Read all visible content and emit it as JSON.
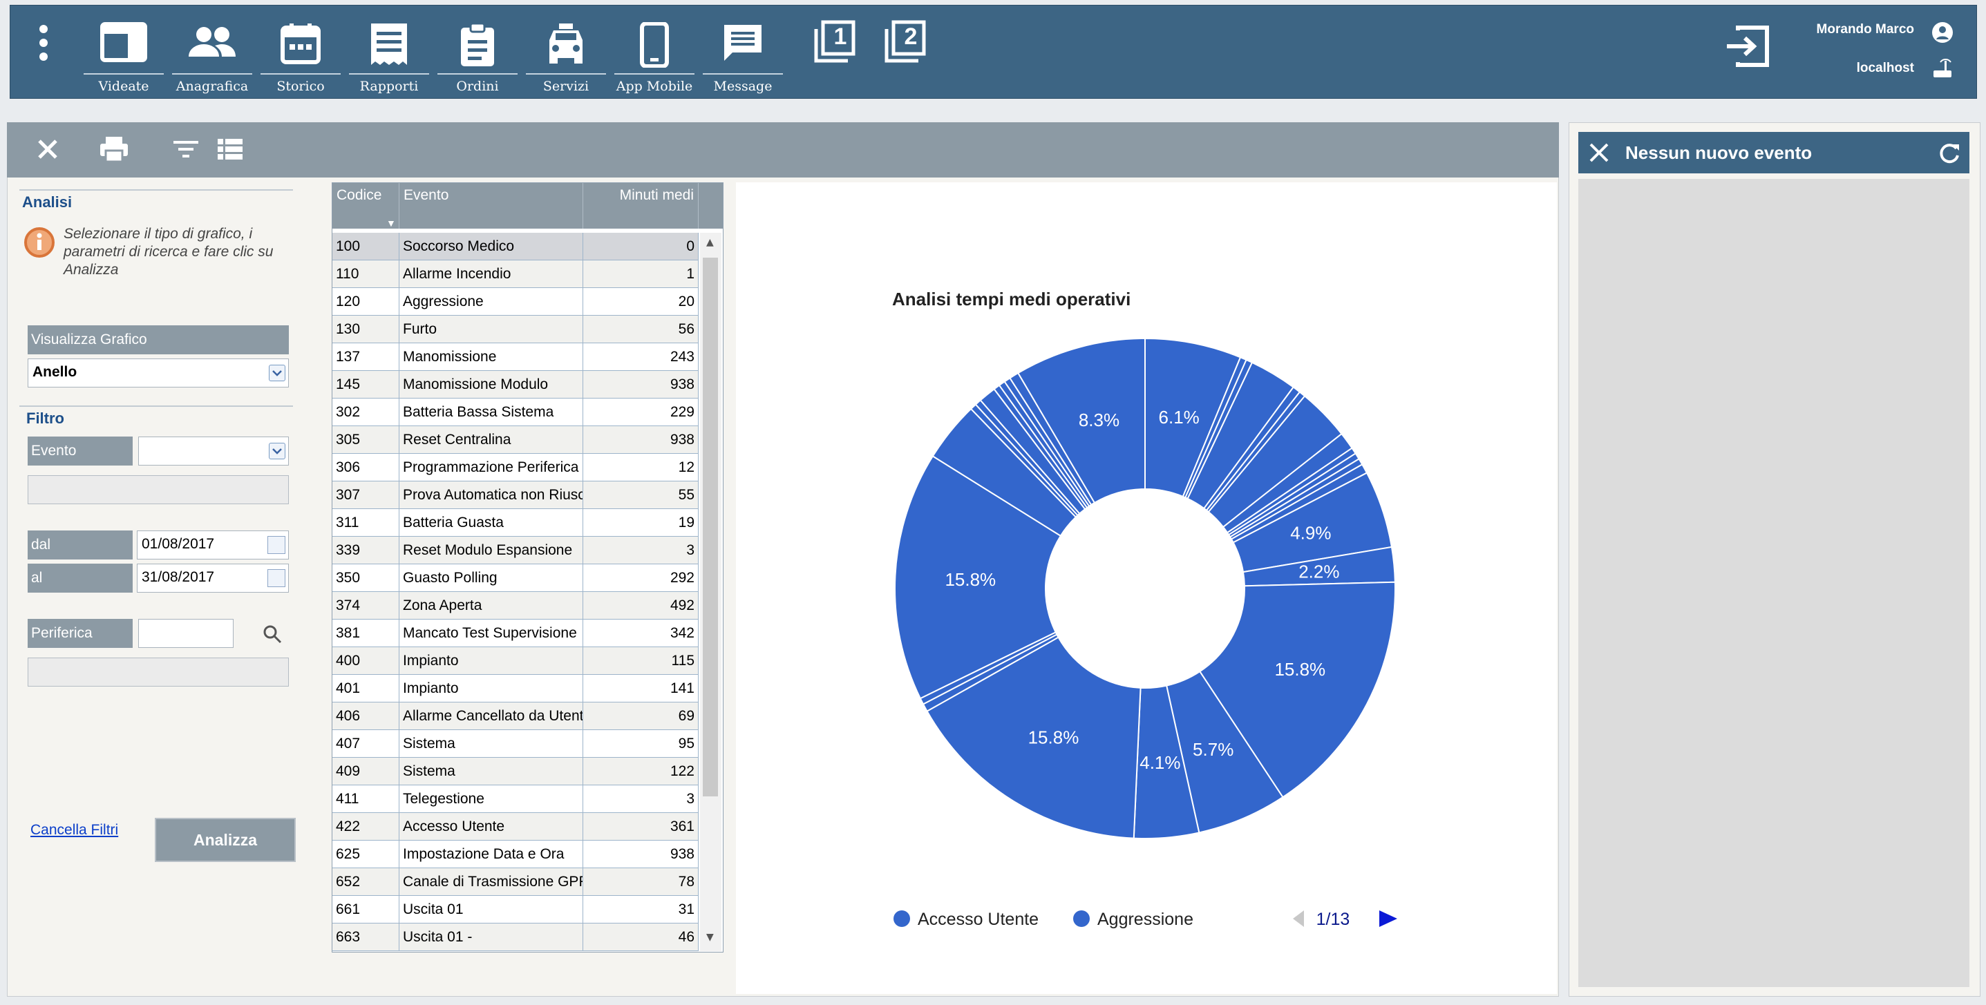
{
  "nav": {
    "items": [
      {
        "label": "Videate",
        "icon": "window-icon"
      },
      {
        "label": "Anagrafica",
        "icon": "people-icon"
      },
      {
        "label": "Storico",
        "icon": "calendar-icon"
      },
      {
        "label": "Rapporti",
        "icon": "receipt-icon"
      },
      {
        "label": "Ordini",
        "icon": "clipboard-icon"
      },
      {
        "label": "Servizi",
        "icon": "car-icon"
      },
      {
        "label": "App Mobile",
        "icon": "phone-icon"
      },
      {
        "label": "Message",
        "icon": "message-icon"
      }
    ],
    "window_one": "1",
    "window_two": "2",
    "user_name": "Morando Marco",
    "host": "localhost"
  },
  "filters": {
    "section_title": "Analisi",
    "info_text": "Selezionare il tipo di grafico, i parametri di ricerca e fare clic su Analizza",
    "chart_type_label": "Visualizza Grafico",
    "chart_type_value": "Anello",
    "filter_title": "Filtro",
    "event_label": "Evento",
    "from_label": "dal",
    "from_value": "01/08/2017",
    "to_label": "al",
    "to_value": "31/08/2017",
    "device_label": "Periferica",
    "clear_link": "Cancella Filtri",
    "analyze_button": "Analizza"
  },
  "table": {
    "headers": {
      "code": "Codice",
      "event": "Evento",
      "minutes": "Minuti medi"
    },
    "rows": [
      {
        "code": "100",
        "event": "Soccorso Medico",
        "minutes": "0"
      },
      {
        "code": "110",
        "event": "Allarme Incendio",
        "minutes": "1"
      },
      {
        "code": "120",
        "event": "Aggressione",
        "minutes": "20"
      },
      {
        "code": "130",
        "event": "Furto",
        "minutes": "56"
      },
      {
        "code": "137",
        "event": "Manomissione",
        "minutes": "243"
      },
      {
        "code": "145",
        "event": "Manomissione Modulo",
        "minutes": "938"
      },
      {
        "code": "302",
        "event": "Batteria Bassa Sistema",
        "minutes": "229"
      },
      {
        "code": "305",
        "event": "Reset Centralina",
        "minutes": "938"
      },
      {
        "code": "306",
        "event": "Programmazione Periferica",
        "minutes": "12"
      },
      {
        "code": "307",
        "event": "Prova Automatica non Riuscita",
        "minutes": "55"
      },
      {
        "code": "311",
        "event": "Batteria Guasta",
        "minutes": "19"
      },
      {
        "code": "339",
        "event": "Reset Modulo Espansione",
        "minutes": "3"
      },
      {
        "code": "350",
        "event": "Guasto Polling",
        "minutes": "292"
      },
      {
        "code": "374",
        "event": "Zona Aperta",
        "minutes": "492"
      },
      {
        "code": "381",
        "event": "Mancato Test Supervisione",
        "minutes": "342"
      },
      {
        "code": "400",
        "event": "Impianto",
        "minutes": "115"
      },
      {
        "code": "401",
        "event": "Impianto",
        "minutes": "141"
      },
      {
        "code": "406",
        "event": "Allarme Cancellato da Utente",
        "minutes": "69"
      },
      {
        "code": "407",
        "event": "Sistema",
        "minutes": "95"
      },
      {
        "code": "409",
        "event": "Sistema",
        "minutes": "122"
      },
      {
        "code": "411",
        "event": "Telegestione",
        "minutes": "3"
      },
      {
        "code": "422",
        "event": "Accesso Utente",
        "minutes": "361"
      },
      {
        "code": "625",
        "event": "Impostazione Data e Ora",
        "minutes": "938"
      },
      {
        "code": "652",
        "event": "Canale di Trasmissione GPRS",
        "minutes": "78"
      },
      {
        "code": "661",
        "event": "Uscita 01",
        "minutes": "31"
      },
      {
        "code": "663",
        "event": "Uscita 01 -",
        "minutes": "46"
      }
    ]
  },
  "chart_data": {
    "type": "pie",
    "variant": "donut",
    "title": "Analisi tempi medi operativi",
    "color": "#3366cc",
    "slices": [
      {
        "value": 6.1,
        "label": "6.1%"
      },
      {
        "value": 0.4,
        "label": ""
      },
      {
        "value": 0.4,
        "label": ""
      },
      {
        "value": 3.0,
        "label": ""
      },
      {
        "value": 0.5,
        "label": ""
      },
      {
        "value": 0.4,
        "label": ""
      },
      {
        "value": 3.3,
        "label": ""
      },
      {
        "value": 1.1,
        "label": ""
      },
      {
        "value": 0.4,
        "label": ""
      },
      {
        "value": 0.4,
        "label": ""
      },
      {
        "value": 0.4,
        "label": ""
      },
      {
        "value": 0.6,
        "label": ""
      },
      {
        "value": 4.9,
        "label": "4.9%"
      },
      {
        "value": 2.2,
        "label": "2.2%"
      },
      {
        "value": 15.8,
        "label": "15.8%"
      },
      {
        "value": 5.7,
        "label": "5.7%"
      },
      {
        "value": 4.1,
        "label": "4.1%"
      },
      {
        "value": 15.8,
        "label": "15.8%"
      },
      {
        "value": 0.5,
        "label": ""
      },
      {
        "value": 0.4,
        "label": ""
      },
      {
        "value": 15.8,
        "label": "15.8%"
      },
      {
        "value": 3.8,
        "label": ""
      },
      {
        "value": 0.4,
        "label": ""
      },
      {
        "value": 0.4,
        "label": ""
      },
      {
        "value": 1.1,
        "label": ""
      },
      {
        "value": 0.4,
        "label": ""
      },
      {
        "value": 0.4,
        "label": ""
      },
      {
        "value": 0.4,
        "label": ""
      },
      {
        "value": 0.6,
        "label": ""
      },
      {
        "value": 8.3,
        "label": "8.3%"
      }
    ],
    "legend": [
      "Accesso Utente",
      "Aggressione"
    ],
    "legend_page": "1/13"
  },
  "events_panel": {
    "title": "Nessun nuovo evento"
  }
}
